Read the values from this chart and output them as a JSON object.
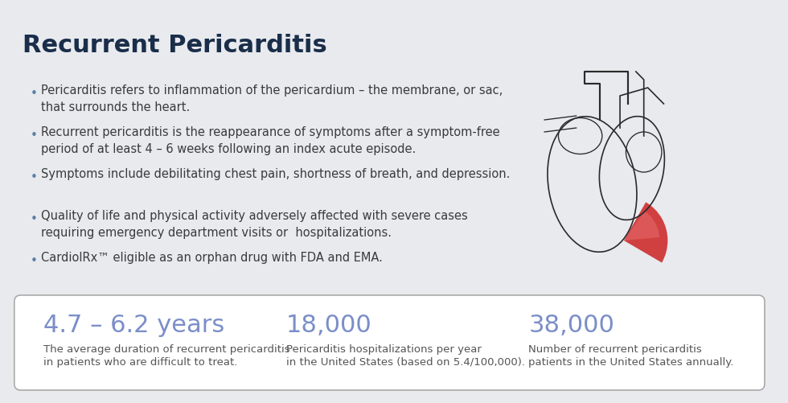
{
  "title": "Recurrent Pericarditis",
  "title_color": "#1a2e4a",
  "title_fontsize": 22,
  "background_color": "#e8eaee",
  "bullet_color": "#5b7fa6",
  "bullet_text_color": "#3a3a3a",
  "bullet_fontsize": 10.5,
  "bullets": [
    "Pericarditis refers to inflammation of the pericardium – the membrane, or sac,\nthat surrounds the heart.",
    "Recurrent pericarditis is the reappearance of symptoms after a symptom-free\nperiod of at least 4 – 6 weeks following an index acute episode.",
    "Symptoms include debilitating chest pain, shortness of breath, and depression.",
    "Quality of life and physical activity adversely affected with severe cases\nrequiring emergency department visits or  hospitalizations.",
    "CardiolRx™ eligible as an orphan drug with FDA and EMA."
  ],
  "stats": [
    {
      "value": "4.7 – 6.2 years",
      "desc_line1": "The average duration of recurrent pericarditis",
      "desc_line2": "in patients who are difficult to treat."
    },
    {
      "value": "18,000",
      "desc_line1": "Pericarditis hospitalizations per year",
      "desc_line2": "in the United States (based on 5.4/100,000)."
    },
    {
      "value": "38,000",
      "desc_line1": "Number of recurrent pericarditis",
      "desc_line2": "patients in the United States annually."
    }
  ],
  "stat_value_color": "#7b8ec8",
  "stat_value_fontsize": 22,
  "stat_desc_color": "#555555",
  "stat_desc_fontsize": 9.5,
  "box_bg_color": "#ffffff",
  "box_border_color": "#aaaaaa"
}
